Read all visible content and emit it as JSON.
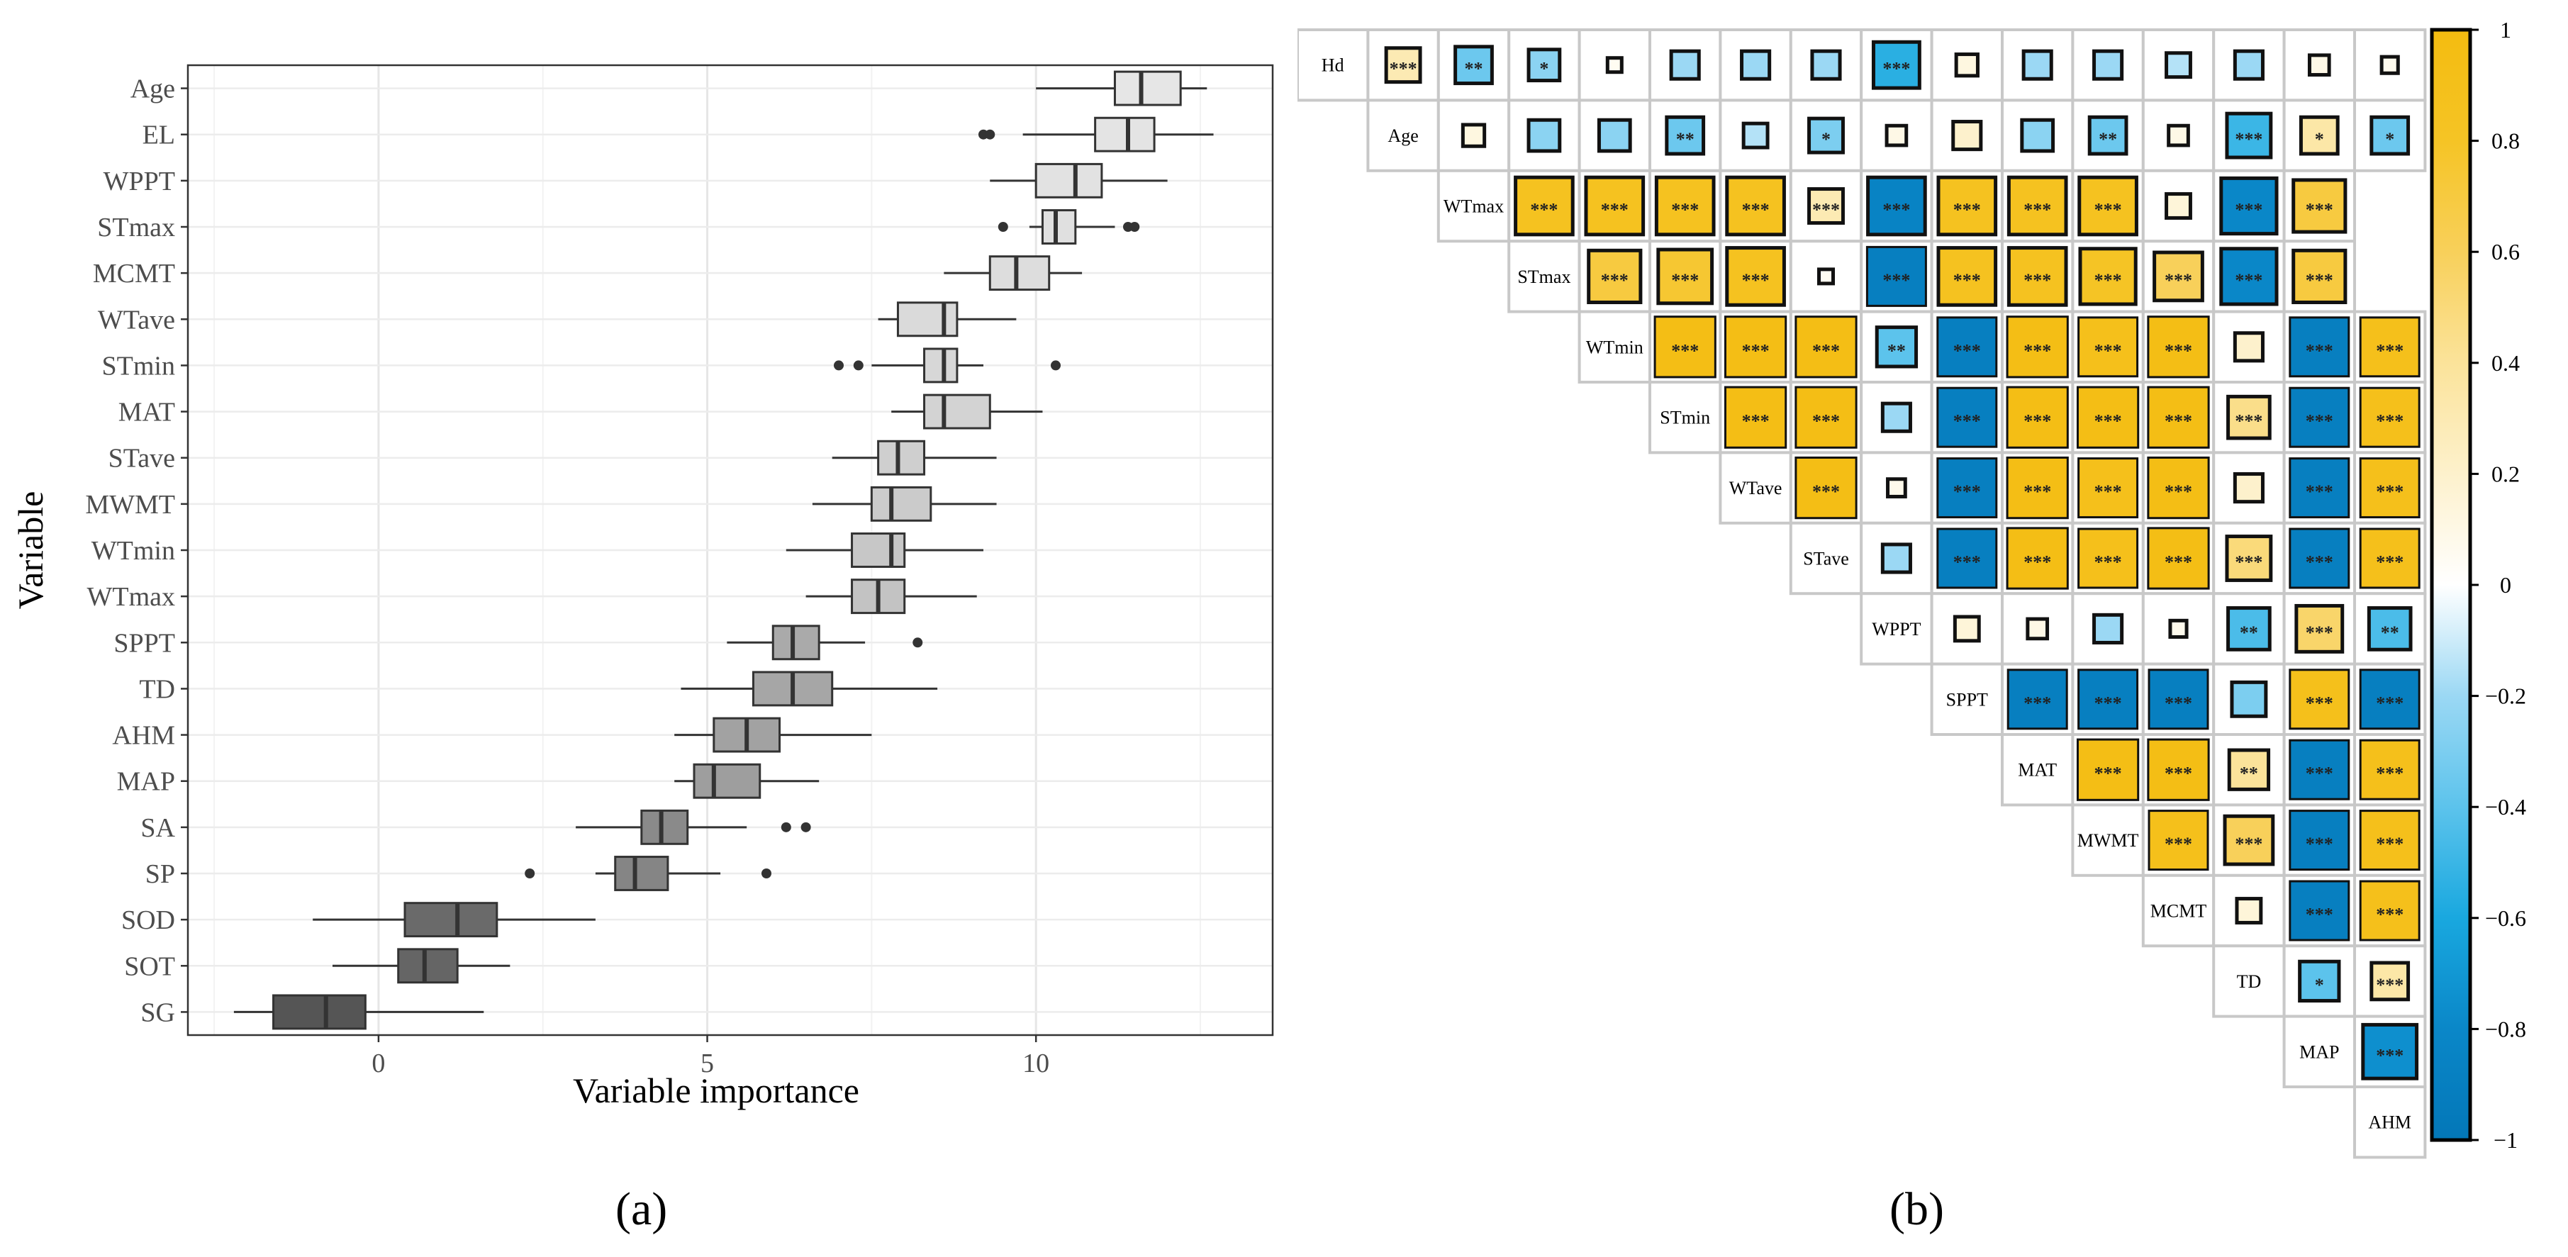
{
  "chart_data": [
    {
      "type": "boxplot",
      "panel_label": "(a)",
      "xlabel": "Variable importance",
      "ylabel": "Variable",
      "xlim": [
        -2.9,
        13.6
      ],
      "xticks": [
        0,
        5,
        10
      ],
      "grid": true,
      "variables": [
        "Age",
        "EL",
        "WPPT",
        "STmax",
        "MCMT",
        "WTave",
        "STmin",
        "MAT",
        "STave",
        "MWMT",
        "WTmin",
        "WTmax",
        "SPPT",
        "TD",
        "AHM",
        "MAP",
        "SA",
        "SP",
        "SOD",
        "SOT",
        "SG"
      ],
      "stats": [
        {
          "min": 10.0,
          "q1": 11.2,
          "median": 11.6,
          "q3": 12.2,
          "max": 12.6,
          "outliers": [],
          "fill": "#e6e6e6"
        },
        {
          "min": 9.8,
          "q1": 10.9,
          "median": 11.4,
          "q3": 11.8,
          "max": 12.7,
          "outliers": [
            9.2,
            9.3
          ],
          "fill": "#e4e4e4"
        },
        {
          "min": 9.3,
          "q1": 10.0,
          "median": 10.6,
          "q3": 11.0,
          "max": 12.0,
          "outliers": [],
          "fill": "#e2e2e2"
        },
        {
          "min": 9.9,
          "q1": 10.1,
          "median": 10.3,
          "q3": 10.6,
          "max": 11.2,
          "outliers": [
            9.5,
            11.4,
            11.5
          ],
          "fill": "#e0e0e0"
        },
        {
          "min": 8.6,
          "q1": 9.3,
          "median": 9.7,
          "q3": 10.2,
          "max": 10.7,
          "outliers": [],
          "fill": "#dddddd"
        },
        {
          "min": 7.6,
          "q1": 7.9,
          "median": 8.6,
          "q3": 8.8,
          "max": 9.7,
          "outliers": [],
          "fill": "#dadada"
        },
        {
          "min": 7.5,
          "q1": 8.3,
          "median": 8.6,
          "q3": 8.8,
          "max": 9.2,
          "outliers": [
            7.0,
            7.3,
            10.3
          ],
          "fill": "#d7d7d7"
        },
        {
          "min": 7.8,
          "q1": 8.3,
          "median": 8.6,
          "q3": 9.3,
          "max": 10.1,
          "outliers": [],
          "fill": "#d3d3d3"
        },
        {
          "min": 6.9,
          "q1": 7.6,
          "median": 7.9,
          "q3": 8.3,
          "max": 9.4,
          "outliers": [],
          "fill": "#cfcfcf"
        },
        {
          "min": 6.6,
          "q1": 7.5,
          "median": 7.8,
          "q3": 8.4,
          "max": 9.4,
          "outliers": [],
          "fill": "#cbcbcb"
        },
        {
          "min": 6.2,
          "q1": 7.2,
          "median": 7.8,
          "q3": 8.0,
          "max": 9.2,
          "outliers": [],
          "fill": "#c7c7c7"
        },
        {
          "min": 6.5,
          "q1": 7.2,
          "median": 7.6,
          "q3": 8.0,
          "max": 9.1,
          "outliers": [],
          "fill": "#c3c3c3"
        },
        {
          "min": 5.3,
          "q1": 6.0,
          "median": 6.3,
          "q3": 6.7,
          "max": 7.4,
          "outliers": [
            8.2
          ],
          "fill": "#aaaaaa"
        },
        {
          "min": 4.6,
          "q1": 5.7,
          "median": 6.3,
          "q3": 6.9,
          "max": 8.5,
          "outliers": [],
          "fill": "#a6a6a6"
        },
        {
          "min": 4.5,
          "q1": 5.1,
          "median": 5.6,
          "q3": 6.1,
          "max": 7.5,
          "outliers": [],
          "fill": "#a2a2a2"
        },
        {
          "min": 4.5,
          "q1": 4.8,
          "median": 5.1,
          "q3": 5.8,
          "max": 6.7,
          "outliers": [],
          "fill": "#9e9e9e"
        },
        {
          "min": 3.0,
          "q1": 4.0,
          "median": 4.3,
          "q3": 4.7,
          "max": 5.6,
          "outliers": [
            6.2,
            6.5
          ],
          "fill": "#8a8a8a"
        },
        {
          "min": 3.3,
          "q1": 3.6,
          "median": 3.9,
          "q3": 4.4,
          "max": 5.2,
          "outliers": [
            2.3,
            5.9
          ],
          "fill": "#858585"
        },
        {
          "min": -1.0,
          "q1": 0.4,
          "median": 1.2,
          "q3": 1.8,
          "max": 3.3,
          "outliers": [],
          "fill": "#6a6a6a"
        },
        {
          "min": -0.7,
          "q1": 0.3,
          "median": 0.7,
          "q3": 1.2,
          "max": 2.0,
          "outliers": [],
          "fill": "#656565"
        },
        {
          "min": -2.2,
          "q1": -1.6,
          "median": -0.8,
          "q3": -0.2,
          "max": 1.6,
          "outliers": [],
          "fill": "#555555"
        }
      ]
    },
    {
      "type": "heatmap",
      "subtype": "upper-triangular correlation matrix",
      "panel_label": "(b)",
      "variables": [
        "Hd",
        "Age",
        "WTmax",
        "STmax",
        "WTmin",
        "STmin",
        "WTave",
        "STave",
        "WPPT",
        "SPPT",
        "MAT",
        "MWMT",
        "MCMT",
        "TD",
        "MAP",
        "AHM"
      ],
      "colorbar": {
        "min": -1,
        "max": 1,
        "ticks": [
          1,
          0.8,
          0.6,
          0.4,
          0.2,
          0,
          -0.2,
          -0.4,
          -0.6,
          -0.8,
          -1
        ],
        "colors": [
          "#0a87c8",
          "#19a8df",
          "#87d3f2",
          "#e1f2fb",
          "#ffffff",
          "#fdf3d2",
          "#fbdf8a",
          "#f7cd3b",
          "#f4bc10"
        ]
      },
      "matrix": [
        [
          0.3,
          -0.35,
          -0.25,
          0.05,
          -0.2,
          -0.2,
          -0.2,
          -0.55,
          0.12,
          -0.2,
          -0.2,
          -0.15,
          -0.2,
          0.1,
          0.07
        ],
        [
          0.12,
          -0.25,
          -0.25,
          -0.35,
          -0.15,
          -0.3,
          0.1,
          0.2,
          -0.25,
          -0.35,
          0.1,
          -0.5,
          0.35,
          -0.35
        ],
        [
          0.85,
          0.85,
          0.85,
          0.85,
          0.3,
          -0.85,
          0.85,
          0.85,
          0.85,
          0.15,
          -0.8,
          0.7
        ],
        [
          0.7,
          0.75,
          0.85,
          0.05,
          -0.9,
          0.85,
          0.85,
          0.8,
          0.6,
          -0.8,
          0.7
        ],
        [
          0.95,
          0.95,
          0.95,
          -0.4,
          -0.9,
          0.95,
          0.9,
          0.95,
          0.2,
          -0.9,
          0.9
        ],
        [
          0.95,
          0.95,
          -0.2,
          -0.9,
          0.95,
          0.95,
          0.95,
          0.45,
          -0.9,
          0.9
        ],
        [
          0.95,
          0.08,
          -0.9,
          0.95,
          0.9,
          0.95,
          0.2,
          -0.9,
          0.9
        ],
        [
          -0.2,
          -0.9,
          0.95,
          0.9,
          0.95,
          0.5,
          -0.9,
          0.9
        ],
        [
          0.15,
          0.1,
          -0.2,
          0.07,
          -0.45,
          0.55,
          -0.45
        ],
        [
          -0.9,
          -0.9,
          -0.9,
          -0.3,
          0.9,
          -0.9
        ],
        [
          0.95,
          0.95,
          0.4,
          -0.9,
          0.9
        ],
        [
          0.9,
          0.6,
          -0.9,
          0.9
        ],
        [
          0.15,
          -0.9,
          0.9
        ],
        [
          -0.4,
          0.35
        ],
        [
          -0.75
        ]
      ],
      "significance": [
        [
          "***",
          "**",
          "*",
          "",
          "",
          "",
          "",
          "***",
          "",
          "",
          "",
          "",
          "",
          "",
          ""
        ],
        [
          "",
          "",
          "",
          "**",
          "",
          "*",
          "",
          "",
          "",
          "**",
          "",
          "***",
          "*",
          "*"
        ],
        [
          "***",
          "***",
          "***",
          "***",
          "***",
          "***",
          "***",
          "***",
          "***",
          "",
          "***",
          "***"
        ],
        [
          "***",
          "***",
          "***",
          "",
          "***",
          "***",
          "***",
          "***",
          "***",
          "***",
          "***"
        ],
        [
          "***",
          "***",
          "***",
          "**",
          "***",
          "***",
          "***",
          "***",
          "",
          "***",
          "***"
        ],
        [
          "***",
          "***",
          "",
          "***",
          "***",
          "***",
          "***",
          "***",
          "***",
          "***"
        ],
        [
          "***",
          "",
          "***",
          "***",
          "***",
          "***",
          "",
          "***",
          "***"
        ],
        [
          "",
          "***",
          "***",
          "***",
          "***",
          "***",
          "***",
          "***"
        ],
        [
          "",
          "",
          "",
          "",
          "**",
          "***",
          "**"
        ],
        [
          "***",
          "***",
          "***",
          "",
          "***",
          "***"
        ],
        [
          "***",
          "***",
          "**",
          "***",
          "***"
        ],
        [
          "***",
          "***",
          "***",
          "***"
        ],
        [
          "",
          "***",
          "***"
        ],
        [
          "*",
          "***"
        ],
        [
          "***"
        ]
      ]
    }
  ]
}
